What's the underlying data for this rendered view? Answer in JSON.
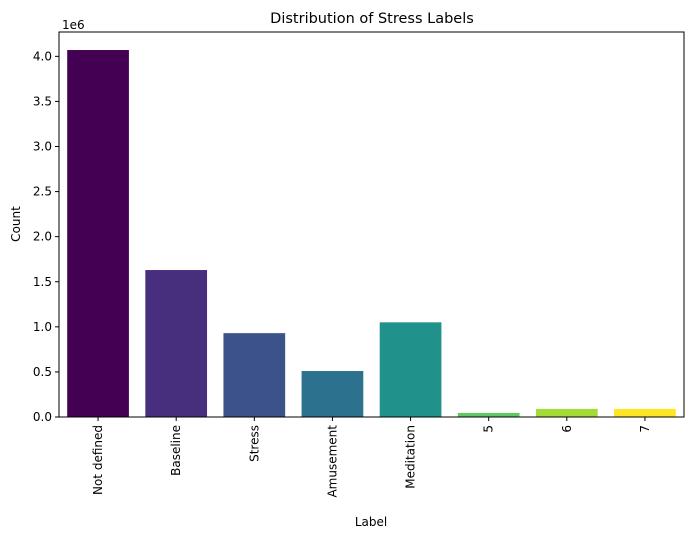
{
  "chart_data": {
    "type": "bar",
    "title": "Distribution of Stress Labels",
    "xlabel": "Label",
    "ylabel": "Count",
    "y_offset_text": "1e6",
    "categories": [
      "Not defined",
      "Baseline",
      "Stress",
      "Amusement",
      "Meditation",
      "5",
      "6",
      "7"
    ],
    "values": [
      4070000,
      1630000,
      930000,
      510000,
      1050000,
      45000,
      90000,
      90000
    ],
    "colors": [
      "#440154",
      "#472f7d",
      "#3b528b",
      "#2c728e",
      "#21918c",
      "#5ec962",
      "#a5db36",
      "#fde725"
    ],
    "yticks": [
      "0.0",
      "0.5",
      "1.0",
      "1.5",
      "2.0",
      "2.5",
      "3.0",
      "3.5",
      "4.0"
    ],
    "ytick_values": [
      0,
      500000,
      1000000,
      1500000,
      2000000,
      2500000,
      3000000,
      3500000,
      4000000
    ],
    "ylim": [
      0,
      4270000
    ],
    "grid": false,
    "legend": false
  }
}
